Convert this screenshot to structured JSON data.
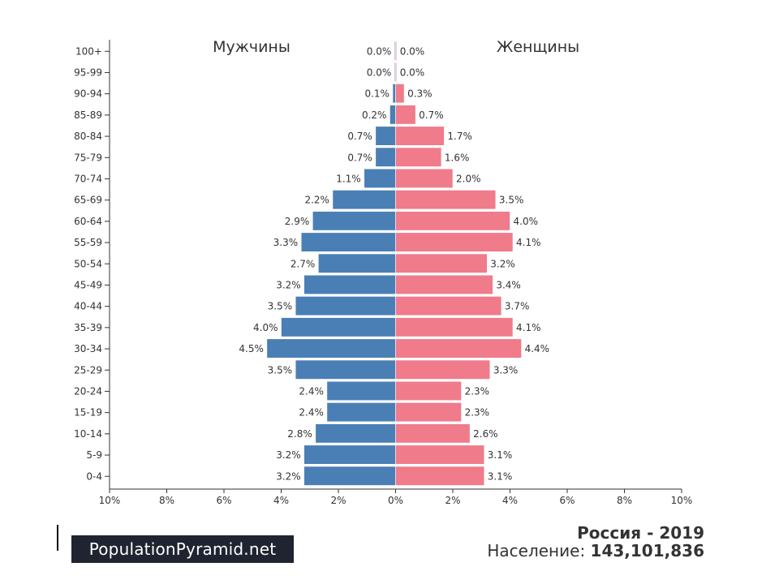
{
  "chart_data": {
    "type": "bar",
    "orientation": "horizontal-pyramid",
    "categories": [
      "100+",
      "95-99",
      "90-94",
      "85-89",
      "80-84",
      "75-79",
      "70-74",
      "65-69",
      "60-64",
      "55-59",
      "50-54",
      "45-49",
      "40-44",
      "35-39",
      "30-34",
      "25-29",
      "20-24",
      "15-19",
      "10-14",
      "5-9",
      "0-4"
    ],
    "series": [
      {
        "name": "Мужчины",
        "side": "left",
        "color": "#4a7fb5",
        "values": [
          0.0,
          0.0,
          0.1,
          0.2,
          0.7,
          0.7,
          1.1,
          2.2,
          2.9,
          3.3,
          2.7,
          3.2,
          3.5,
          4.0,
          4.5,
          3.5,
          2.4,
          2.4,
          2.8,
          3.2,
          3.2
        ],
        "labels": [
          "0.0%",
          "0.0%",
          "0.1%",
          "0.2%",
          "0.7%",
          "0.7%",
          "1.1%",
          "2.2%",
          "2.9%",
          "3.3%",
          "2.7%",
          "3.2%",
          "3.5%",
          "4.0%",
          "4.5%",
          "3.5%",
          "2.4%",
          "2.4%",
          "2.8%",
          "3.2%",
          "3.2%"
        ]
      },
      {
        "name": "Женщины",
        "side": "right",
        "color": "#ef7b8b",
        "values": [
          0.0,
          0.0,
          0.3,
          0.7,
          1.7,
          1.6,
          2.0,
          3.5,
          4.0,
          4.1,
          3.2,
          3.4,
          3.7,
          4.1,
          4.4,
          3.3,
          2.3,
          2.3,
          2.6,
          3.1,
          3.1
        ],
        "labels": [
          "0.0%",
          "0.0%",
          "0.3%",
          "0.7%",
          "1.7%",
          "1.6%",
          "2.0%",
          "3.5%",
          "4.0%",
          "4.1%",
          "3.2%",
          "3.4%",
          "3.7%",
          "4.1%",
          "4.4%",
          "3.3%",
          "2.3%",
          "2.3%",
          "2.6%",
          "3.1%",
          "3.1%"
        ]
      }
    ],
    "x_ticks": [
      "10%",
      "8%",
      "6%",
      "4%",
      "2%",
      "0%",
      "2%",
      "4%",
      "6%",
      "8%",
      "10%"
    ],
    "x_tick_values": [
      -10,
      -8,
      -6,
      -4,
      -2,
      0,
      2,
      4,
      6,
      8,
      10
    ],
    "xlim": [
      -10,
      10
    ],
    "grid": false,
    "title": "",
    "xlabel": "",
    "ylabel": ""
  },
  "footer": {
    "brand": "PopulationPyramid.net",
    "country_title": "Россия - 2019",
    "population_label": "Население:",
    "population_value": "143,101,836"
  },
  "colors": {
    "male": "#4a7fb5",
    "female": "#ef7b8b",
    "axis": "#333333",
    "text": "#333333",
    "badge_bg": "#1f2430"
  }
}
